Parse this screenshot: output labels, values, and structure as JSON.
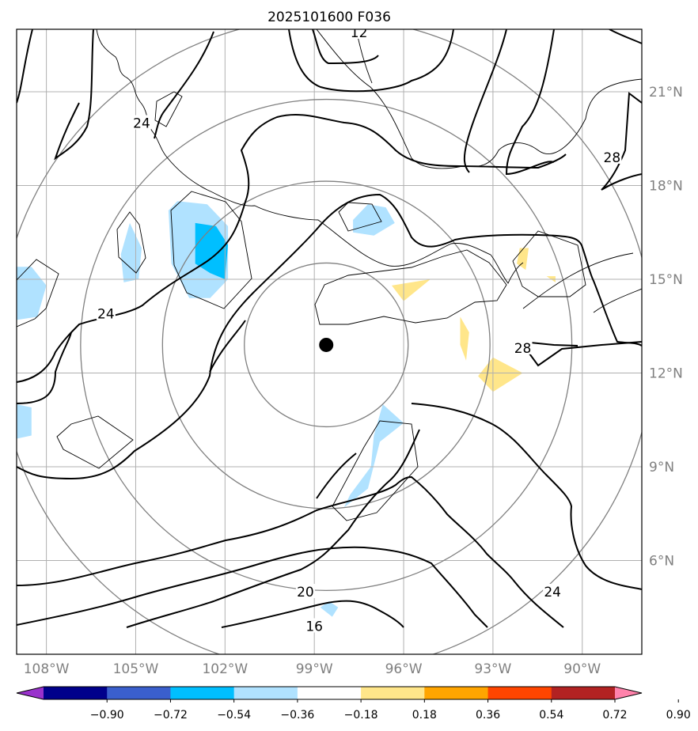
{
  "chart_data": {
    "type": "map-contour",
    "title": "2025101600 F036",
    "lon_range": [
      -109,
      -88
    ],
    "lat_range": [
      3,
      23
    ],
    "lon_ticks": [
      {
        "value": -108,
        "label": "108°W"
      },
      {
        "value": -105,
        "label": "105°W"
      },
      {
        "value": -102,
        "label": "102°W"
      },
      {
        "value": -99,
        "label": "99°W"
      },
      {
        "value": -96,
        "label": "96°W"
      },
      {
        "value": -93,
        "label": "93°W"
      },
      {
        "value": -90,
        "label": "90°W"
      }
    ],
    "lat_ticks": [
      {
        "value": 6,
        "label": "6°N"
      },
      {
        "value": 9,
        "label": "9°N"
      },
      {
        "value": 12,
        "label": "12°N"
      },
      {
        "value": 15,
        "label": "15°N"
      },
      {
        "value": 18,
        "label": "18°N"
      },
      {
        "value": 21,
        "label": "21°N"
      }
    ],
    "center": {
      "lon": -98.6,
      "lat": 12.9
    },
    "range_rings_deg": [
      2.75,
      5.5,
      8.25,
      11
    ],
    "colorbar": {
      "levels": [
        -0.9,
        -0.72,
        -0.54,
        -0.36,
        -0.18,
        0.18,
        0.36,
        0.54,
        0.72,
        0.9
      ],
      "tick_labels": [
        "−0.90",
        "−0.72",
        "−0.54",
        "−0.36",
        "−0.18",
        "0.18",
        "0.36",
        "0.54",
        "0.72",
        "0.90"
      ],
      "colors": [
        "#9932cc",
        "#00008b",
        "#3a5fcd",
        "#00bfff",
        "#b0e2ff",
        "#ffffff",
        "#ffe68a",
        "#ffa500",
        "#ff4500",
        "#b22222",
        "#ff82ab"
      ]
    },
    "shaded_regions": [
      {
        "name": "blue-west-edge",
        "level": -0.18,
        "points": [
          [
            -109,
            15.4
          ],
          [
            -108.5,
            15.4
          ],
          [
            -108,
            14.8
          ],
          [
            -108.3,
            13.8
          ],
          [
            -109,
            13.7
          ]
        ]
      },
      {
        "name": "blue-west-edge-2",
        "level": -0.18,
        "points": [
          [
            -109,
            11.0
          ],
          [
            -108.5,
            10.9
          ],
          [
            -108.5,
            10.0
          ],
          [
            -109,
            9.9
          ]
        ]
      },
      {
        "name": "blue-105w",
        "level": -0.18,
        "points": [
          [
            -105.5,
            15.8
          ],
          [
            -105.2,
            16.8
          ],
          [
            -104.8,
            16.0
          ],
          [
            -104.9,
            15.0
          ],
          [
            -105.4,
            14.9
          ]
        ]
      },
      {
        "name": "blue-103w",
        "level": -0.18,
        "points": [
          [
            -103.9,
            17.2
          ],
          [
            -103.6,
            17.5
          ],
          [
            -102.6,
            17.4
          ],
          [
            -101.9,
            16.7
          ],
          [
            -101.9,
            15.0
          ],
          [
            -102.5,
            14.4
          ],
          [
            -103.2,
            14.4
          ],
          [
            -103.8,
            15.5
          ]
        ]
      },
      {
        "name": "blue-103w-deep",
        "level": -0.36,
        "points": [
          [
            -103.0,
            16.8
          ],
          [
            -102.3,
            16.7
          ],
          [
            -101.9,
            16.1
          ],
          [
            -102.0,
            15.0
          ],
          [
            -102.5,
            15.2
          ],
          [
            -103.0,
            15.5
          ]
        ]
      },
      {
        "name": "blue-97w-north",
        "level": -0.18,
        "points": [
          [
            -97.7,
            16.9
          ],
          [
            -97.2,
            17.4
          ],
          [
            -96.6,
            17.3
          ],
          [
            -96.3,
            16.8
          ],
          [
            -97.0,
            16.4
          ],
          [
            -97.7,
            16.5
          ]
        ]
      },
      {
        "name": "blue-97w-south",
        "level": -0.18,
        "points": [
          [
            -96.7,
            11.0
          ],
          [
            -96.0,
            10.4
          ],
          [
            -96.8,
            9.8
          ],
          [
            -97.2,
            8.3
          ],
          [
            -98.0,
            7.7
          ],
          [
            -97.8,
            8.1
          ],
          [
            -97.1,
            9.0
          ],
          [
            -97.0,
            10.0
          ]
        ]
      },
      {
        "name": "blue-98w-spot",
        "level": -0.18,
        "points": [
          [
            -98.5,
            4.7
          ],
          [
            -98.2,
            4.5
          ],
          [
            -98.4,
            4.2
          ],
          [
            -98.8,
            4.5
          ]
        ]
      },
      {
        "name": "yellow-24w",
        "level": 0.18,
        "points": [
          [
            -105.0,
            20.9
          ],
          [
            -104.6,
            21.5
          ],
          [
            -104.1,
            20.9
          ],
          [
            -104.4,
            20.1
          ],
          [
            -104.7,
            19.7
          ],
          [
            -105.0,
            20.4
          ]
        ]
      },
      {
        "name": "yellow-106w",
        "level": 0.18,
        "points": [
          [
            -107.2,
            10.4
          ],
          [
            -106.5,
            10.7
          ],
          [
            -105.5,
            10.7
          ],
          [
            -104.8,
            10.4
          ],
          [
            -105.3,
            9.7
          ],
          [
            -106.4,
            9.6
          ],
          [
            -107.2,
            10.0
          ]
        ]
      },
      {
        "name": "yellow-center",
        "level": 0.18,
        "points": [
          [
            -99.4,
            13.8
          ],
          [
            -98.4,
            15.2
          ],
          [
            -97.0,
            15.7
          ],
          [
            -95.8,
            16.3
          ],
          [
            -94.8,
            16.3
          ],
          [
            -94.3,
            15.8
          ],
          [
            -93.9,
            14.9
          ],
          [
            -93.5,
            14.3
          ],
          [
            -92.8,
            13.3
          ],
          [
            -92.6,
            11.5
          ],
          [
            -92.6,
            10.7
          ],
          [
            -93.7,
            10.7
          ],
          [
            -94.6,
            11.8
          ],
          [
            -95.1,
            12.9
          ],
          [
            -95.3,
            13.4
          ],
          [
            -95.8,
            13.3
          ],
          [
            -96.3,
            13.1
          ],
          [
            -98.3,
            13.1
          ],
          [
            -99.0,
            13.3
          ]
        ]
      },
      {
        "name": "yellow-east",
        "level": 0.18,
        "points": [
          [
            -93.0,
            15.9
          ],
          [
            -92.6,
            16.2
          ],
          [
            -90.8,
            16.3
          ],
          [
            -90.5,
            15.0
          ],
          [
            -91.0,
            14.6
          ],
          [
            -92.4,
            14.4
          ],
          [
            -93.0,
            15.0
          ]
        ]
      },
      {
        "name": "orange-a",
        "level": 0.36,
        "points": [
          [
            -96.4,
            14.8
          ],
          [
            -95.1,
            15.0
          ],
          [
            -96.0,
            14.3
          ]
        ]
      },
      {
        "name": "orange-b",
        "level": 0.36,
        "points": [
          [
            -94.1,
            13.8
          ],
          [
            -93.8,
            13.3
          ],
          [
            -93.9,
            12.4
          ],
          [
            -94.1,
            12.9
          ]
        ]
      },
      {
        "name": "orange-c",
        "level": 0.36,
        "points": [
          [
            -93.5,
            11.9
          ],
          [
            -93.0,
            12.5
          ],
          [
            -92.0,
            12.0
          ],
          [
            -93.0,
            11.4
          ]
        ]
      },
      {
        "name": "orange-d",
        "level": 0.36,
        "points": [
          [
            -92.1,
            16.0
          ],
          [
            -91.8,
            16.0
          ],
          [
            -91.9,
            15.3
          ],
          [
            -92.2,
            15.5
          ]
        ]
      },
      {
        "name": "orange-e",
        "level": 0.36,
        "points": [
          [
            -91.2,
            15.1
          ],
          [
            -90.9,
            15.1
          ],
          [
            -90.9,
            14.9
          ]
        ]
      }
    ],
    "contour_labels": [
      {
        "text": "12",
        "lon": -97.5,
        "lat": 22.9
      },
      {
        "text": "24",
        "lon": -104.8,
        "lat": 20.0
      },
      {
        "text": "24",
        "lon": -106.0,
        "lat": 13.9
      },
      {
        "text": "28",
        "lon": -89.0,
        "lat": 18.9
      },
      {
        "text": "28",
        "lon": -92.0,
        "lat": 12.8
      },
      {
        "text": "20",
        "lon": -99.3,
        "lat": 5.0
      },
      {
        "text": "16",
        "lon": -99.0,
        "lat": 3.9
      },
      {
        "text": "24",
        "lon": -91.0,
        "lat": 5.0
      }
    ]
  }
}
